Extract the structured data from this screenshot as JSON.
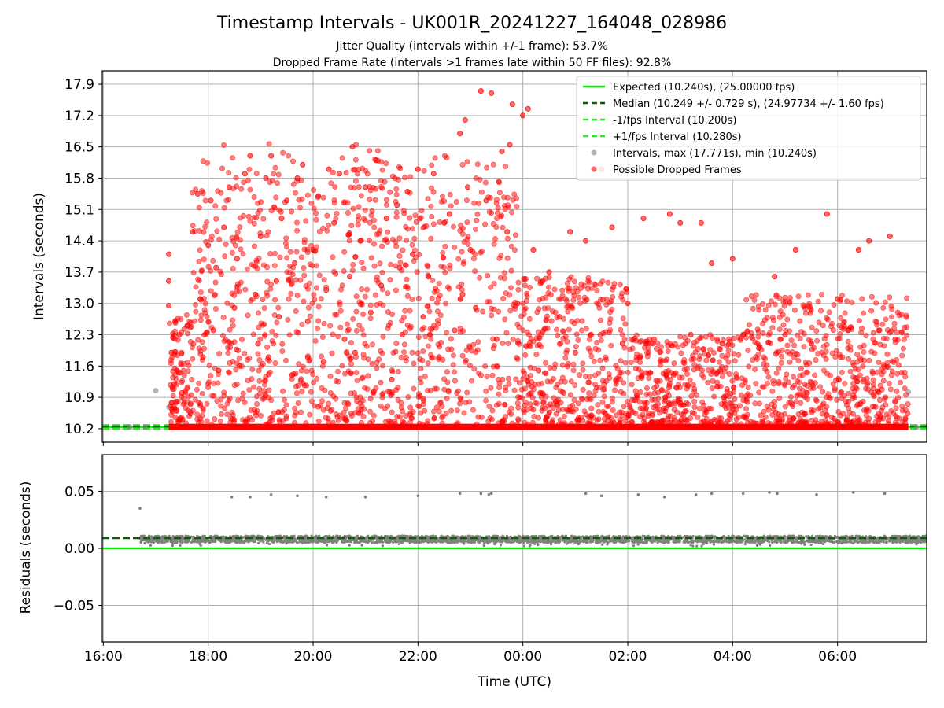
{
  "figure": {
    "title": "Timestamp Intervals - UK001R_20241227_164048_028986",
    "subtitle1": "Jitter Quality (intervals within +/-1 frame): 53.7%",
    "subtitle2": "Dropped Frame Rate (intervals >1 frames late within 50 FF files): 92.8%",
    "xlabel": "Time (UTC)"
  },
  "colors": {
    "expected": "#00ee00",
    "median": "#006400",
    "interval_bounds": "#22ee22",
    "intervals": "#808080",
    "dropped": "#ff0000",
    "grid": "#b0b0b0"
  },
  "chart_data": [
    {
      "type": "scatter",
      "panel": "intervals",
      "ylabel": "Intervals (seconds)",
      "x_axis": {
        "unit": "hours since 16:00 UTC on 2024-12-27",
        "range": [
          -0.02,
          15.7
        ],
        "ticks": [
          0,
          2,
          4,
          6,
          8,
          10,
          12,
          14
        ],
        "tick_labels": [
          "16:00",
          "18:00",
          "20:00",
          "22:00",
          "00:00",
          "02:00",
          "04:00",
          "06:00"
        ]
      },
      "ylim": [
        9.9,
        18.2
      ],
      "yticks": [
        10.2,
        10.9,
        11.6,
        12.3,
        13.0,
        13.7,
        14.4,
        15.1,
        15.8,
        16.5,
        17.2,
        17.9
      ],
      "ytick_labels": [
        "10.2",
        "10.9",
        "11.6",
        "12.3",
        "13.0",
        "13.7",
        "14.4",
        "15.1",
        "15.8",
        "16.5",
        "17.2",
        "17.9"
      ],
      "grid": true,
      "legend_position": "top-right",
      "legend": [
        "Expected (10.240s), (25.00000 fps)",
        "Median (10.249 +/- 0.729 s), (24.97734 +/- 1.60 fps)",
        "-1/fps Interval (10.200s)",
        "+1/fps Interval (10.280s)",
        "Intervals, max (17.771s), min (10.240s)",
        "Possible Dropped Frames"
      ],
      "lines": {
        "expected": 10.24,
        "median": 10.249,
        "minus_interval": 10.2,
        "plus_interval": 10.28
      },
      "summary": {
        "max_interval": 17.771,
        "min_interval": 10.24
      },
      "dropped_frames_band": {
        "y": 10.24,
        "x_start": 1.25,
        "x_end": 15.35
      },
      "intervals_series": {
        "name": "Intervals, max (17.771s), min (10.240s)",
        "x": [
          1.0,
          1.25,
          15.35,
          15.5,
          0.5,
          0.8
        ],
        "y": [
          11.05,
          10.68,
          11.02,
          10.24,
          10.24,
          10.24
        ]
      },
      "dropped_series": {
        "name": "Possible Dropped Frames",
        "x": [
          1.25,
          1.25,
          1.25,
          1.3,
          1.35,
          1.45,
          1.5,
          1.6,
          1.7,
          1.8,
          1.85,
          1.9,
          2.0,
          2.05,
          2.1,
          2.15,
          2.2,
          2.3,
          2.4,
          2.5,
          2.55,
          2.6,
          2.7,
          2.8,
          2.9,
          2.95,
          3.0,
          3.1,
          3.15,
          3.2,
          3.3,
          3.35,
          3.4,
          3.5,
          3.6,
          3.65,
          3.7,
          3.8,
          3.9,
          4.0,
          4.1,
          4.2,
          4.25,
          4.3,
          4.4,
          4.5,
          4.6,
          4.7,
          4.75,
          4.8,
          4.9,
          5.0,
          5.1,
          5.2,
          5.3,
          5.4,
          5.5,
          5.6,
          5.65,
          5.7,
          5.8,
          5.9,
          6.0,
          6.1,
          6.2,
          6.3,
          6.4,
          6.5,
          6.6,
          6.7,
          6.8,
          6.85,
          6.9,
          6.95,
          7.0,
          7.1,
          7.2,
          7.3,
          7.4,
          7.5,
          7.6,
          7.7,
          7.75,
          7.8,
          7.9,
          8.0,
          8.1,
          8.2,
          8.3,
          8.5,
          8.7,
          8.9,
          9.0,
          9.2,
          9.3,
          9.5,
          9.7,
          9.9,
          10.0,
          10.3,
          10.5,
          10.8,
          11.0,
          11.2,
          11.4,
          11.6,
          11.8,
          12.0,
          12.2,
          12.5,
          12.8,
          13.0,
          13.2,
          13.5,
          13.8,
          14.0,
          14.2,
          14.4,
          14.6,
          14.8,
          15.0,
          15.1
        ],
        "y": [
          14.1,
          13.5,
          12.95,
          11.9,
          11.2,
          12.3,
          11.0,
          12.5,
          14.6,
          15.45,
          13.1,
          11.8,
          14.3,
          15.3,
          12.4,
          13.8,
          11.5,
          14.7,
          15.6,
          12.9,
          14.0,
          11.6,
          15.9,
          16.3,
          13.2,
          12.1,
          14.5,
          15.8,
          11.8,
          16.3,
          13.5,
          12.7,
          14.9,
          15.3,
          11.4,
          13.9,
          15.8,
          16.1,
          12.6,
          14.2,
          15.4,
          11.7,
          13.3,
          16.0,
          14.8,
          15.9,
          12.2,
          13.6,
          16.5,
          11.9,
          14.4,
          15.6,
          12.8,
          16.2,
          13.4,
          14.9,
          11.3,
          15.2,
          13.8,
          12.3,
          15.5,
          14.1,
          16.0,
          12.7,
          13.6,
          15.9,
          11.8,
          14.8,
          15.0,
          12.4,
          16.8,
          13.2,
          17.1,
          15.6,
          14.2,
          12.9,
          17.75,
          15.3,
          17.7,
          12.2,
          16.4,
          14.6,
          16.55,
          17.45,
          13.0,
          17.2,
          17.35,
          14.2,
          11.5,
          13.7,
          12.7,
          14.6,
          11.9,
          14.4,
          12.3,
          16.0,
          14.7,
          12.1,
          13.0,
          14.9,
          12.2,
          15.0,
          14.8,
          12.3,
          14.8,
          13.9,
          12.1,
          14.0,
          12.3,
          12.0,
          13.6,
          12.3,
          14.2,
          12.1,
          15.0,
          13.1,
          12.4,
          14.2,
          14.4,
          12.4,
          14.5,
          12.2
        ]
      }
    },
    {
      "type": "scatter",
      "panel": "residuals",
      "ylabel": "Residuals (seconds)",
      "x_axis": {
        "unit": "hours since 16:00 UTC on 2024-12-27",
        "range": [
          -0.02,
          15.7
        ],
        "ticks": [
          0,
          2,
          4,
          6,
          8,
          10,
          12,
          14
        ],
        "tick_labels": [
          "16:00",
          "18:00",
          "20:00",
          "22:00",
          "00:00",
          "02:00",
          "04:00",
          "06:00"
        ]
      },
      "xlabel": "Time (UTC)",
      "ylim": [
        -0.082,
        0.082
      ],
      "yticks": [
        -0.05,
        0.0,
        0.05
      ],
      "ytick_labels": [
        "−0.05",
        "0.00",
        "0.05"
      ],
      "grid": true,
      "lines": {
        "expected": 0.0,
        "median": 0.009
      },
      "residual_band": {
        "y_min": 0.005,
        "y_max": 0.011,
        "x_start": 0.7,
        "x_end": 15.7
      },
      "outliers": {
        "x": [
          0.7,
          2.45,
          2.8,
          3.2,
          3.7,
          4.25,
          5.0,
          6.0,
          6.8,
          7.2,
          7.35,
          7.4,
          9.2,
          9.5,
          10.2,
          10.7,
          11.3,
          11.6,
          12.2,
          12.7,
          12.85,
          13.6,
          14.3,
          14.9
        ],
        "y": [
          0.035,
          0.045,
          0.045,
          0.047,
          0.046,
          0.045,
          0.045,
          0.046,
          0.048,
          0.048,
          0.047,
          0.048,
          0.048,
          0.046,
          0.047,
          0.045,
          0.047,
          0.048,
          0.048,
          0.049,
          0.048,
          0.047,
          0.049,
          0.048
        ]
      }
    }
  ]
}
